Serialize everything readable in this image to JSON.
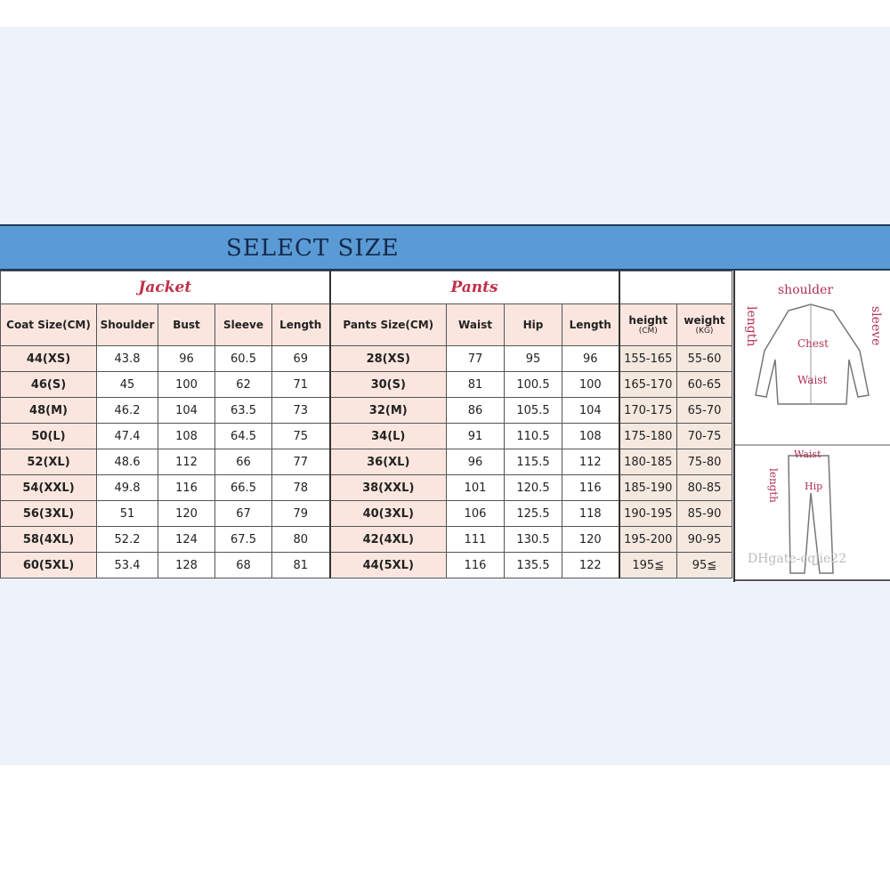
{
  "title": "SELECT SIZE",
  "jacket": {
    "label": "Jacket",
    "headers": [
      "Coat Size(CM)",
      "Shoulder",
      "Bust",
      "Sleeve",
      "Length"
    ],
    "rows": [
      [
        "44(XS)",
        "43.8",
        "96",
        "60.5",
        "69"
      ],
      [
        "46(S)",
        "45",
        "100",
        "62",
        "71"
      ],
      [
        "48(M)",
        "46.2",
        "104",
        "63.5",
        "73"
      ],
      [
        "50(L)",
        "47.4",
        "108",
        "64.5",
        "75"
      ],
      [
        "52(XL)",
        "48.6",
        "112",
        "66",
        "77"
      ],
      [
        "54(XXL)",
        "49.8",
        "116",
        "66.5",
        "78"
      ],
      [
        "56(3XL)",
        "51",
        "120",
        "67",
        "79"
      ],
      [
        "58(4XL)",
        "52.2",
        "124",
        "67.5",
        "80"
      ],
      [
        "60(5XL)",
        "53.4",
        "128",
        "68",
        "81"
      ]
    ]
  },
  "pants": {
    "label": "Pants",
    "headers": [
      "Pants Size(CM)",
      "Waist",
      "Hip",
      "Length"
    ],
    "rows": [
      [
        "28(XS)",
        "77",
        "95",
        "96"
      ],
      [
        "30(S)",
        "81",
        "100.5",
        "100"
      ],
      [
        "32(M)",
        "86",
        "105.5",
        "104"
      ],
      [
        "34(L)",
        "91",
        "110.5",
        "108"
      ],
      [
        "36(XL)",
        "96",
        "115.5",
        "112"
      ],
      [
        "38(XXL)",
        "101",
        "120.5",
        "116"
      ],
      [
        "40(3XL)",
        "106",
        "125.5",
        "118"
      ],
      [
        "42(4XL)",
        "111",
        "130.5",
        "120"
      ],
      [
        "44(5XL)",
        "116",
        "135.5",
        "122"
      ]
    ]
  },
  "body": {
    "headers": [
      {
        "label": "height",
        "unit": "(CM)"
      },
      {
        "label": "weight",
        "unit": "(KG)"
      }
    ],
    "rows": [
      [
        "155-165",
        "55-60"
      ],
      [
        "165-170",
        "60-65"
      ],
      [
        "170-175",
        "65-70"
      ],
      [
        "175-180",
        "70-75"
      ],
      [
        "180-185",
        "75-80"
      ],
      [
        "185-190",
        "80-85"
      ],
      [
        "190-195",
        "85-90"
      ],
      [
        "195-200",
        "90-95"
      ],
      [
        "195≦",
        "95≦"
      ]
    ]
  },
  "diagram": {
    "jacket_labels": [
      "shoulder",
      "length",
      "sleeve",
      "Chest",
      "Waist"
    ],
    "pants_labels": [
      "Waist",
      "length",
      "Hip"
    ],
    "watermark": "DHgate-cqjie22"
  },
  "colors": {
    "title_bar": "#5b9bd5",
    "header_cell": "#fae6de",
    "group_label": "#c0304a"
  }
}
